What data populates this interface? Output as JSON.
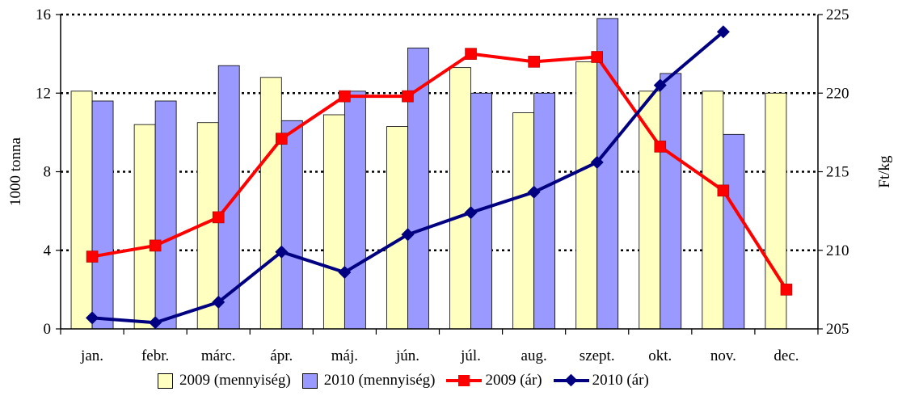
{
  "chart_data": {
    "type": "bar",
    "categories": [
      "jan.",
      "febr.",
      "márc.",
      "ápr.",
      "máj.",
      "jún.",
      "júl.",
      "aug.",
      "szept.",
      "okt.",
      "nov.",
      "dec."
    ],
    "ylabel": "1000 tonna",
    "y2label": "Ft/kg",
    "ylim": [
      0,
      16
    ],
    "y2lim": [
      205,
      225
    ],
    "yticks": [
      "0",
      "4",
      "8",
      "12",
      "16"
    ],
    "y2ticks": [
      "205",
      "210",
      "215",
      "220",
      "225"
    ],
    "grid": "horizontal dotted",
    "legend_position": "bottom",
    "bar_series": [
      {
        "name": "2009 (mennyiség)",
        "color": "#ffffc0",
        "values": [
          12.1,
          10.4,
          10.5,
          12.8,
          10.9,
          10.3,
          13.3,
          11.0,
          13.6,
          12.1,
          12.1,
          12.0
        ]
      },
      {
        "name": "2010 (mennyiség)",
        "color": "#9999ff",
        "values": [
          11.6,
          11.6,
          13.4,
          10.6,
          12.1,
          14.3,
          12.0,
          12.0,
          15.8,
          13.0,
          9.9,
          null
        ]
      }
    ],
    "line_series": [
      {
        "name": "2009 (ár)",
        "color": "#ff0000",
        "marker": "square",
        "values": [
          209.6,
          210.3,
          212.1,
          217.1,
          219.8,
          219.8,
          222.5,
          222.0,
          222.3,
          216.6,
          213.8,
          207.5
        ]
      },
      {
        "name": "2010 (ár)",
        "color": "#000080",
        "marker": "diamond",
        "values": [
          205.7,
          205.4,
          206.7,
          209.9,
          208.6,
          211.0,
          212.4,
          213.7,
          215.6,
          220.5,
          223.9,
          null
        ]
      }
    ]
  }
}
